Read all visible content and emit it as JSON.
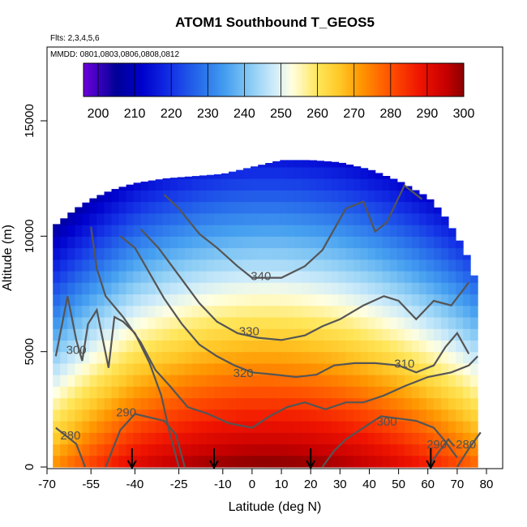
{
  "header": {
    "title": "ATOM1 Southbound T_GEOS5",
    "flights": "Flts: 2,3,4,5,6",
    "dates": "MMDD: 0801,0803,0806,0808,0812"
  },
  "chart_data": {
    "type": "heatmap",
    "title": "ATOM1 Southbound T_GEOS5",
    "xlabel": "Latitude (deg N)",
    "ylabel": "Altitude (m)",
    "xlim": [
      -70,
      80
    ],
    "ylim": [
      0,
      17500
    ],
    "x_ticks": [
      -70,
      -55,
      -40,
      -25,
      -10,
      0,
      10,
      20,
      30,
      40,
      50,
      60,
      70,
      80
    ],
    "x_tick_labels": [
      "-70",
      "-55",
      "-40",
      "-25",
      "-10",
      "0",
      "10",
      "20",
      "30",
      "40",
      "50",
      "60",
      "70",
      "80"
    ],
    "y_ticks": [
      0,
      5000,
      10000,
      15000
    ],
    "y_tick_labels": [
      "0",
      "5000",
      "10000",
      "15000"
    ],
    "colorbar": {
      "ticks": [
        200,
        210,
        220,
        230,
        240,
        250,
        260,
        270,
        280,
        290,
        300
      ],
      "tick_labels": [
        "200",
        "210",
        "220",
        "230",
        "240",
        "250",
        "260",
        "270",
        "280",
        "290",
        "300"
      ],
      "range": [
        196,
        300
      ],
      "colors": [
        "#6a0dad",
        "#00008b",
        "#0000cd",
        "#1e56e6",
        "#3d9be9",
        "#a6d3f5",
        "#ffffe0",
        "#ffe060",
        "#ff9900",
        "#ff2a00",
        "#c80000",
        "#8b0000"
      ]
    },
    "contours": [
      {
        "level": "280",
        "label_lat": -62,
        "label_alt": 1200
      },
      {
        "level": "290",
        "label_lat": -43,
        "label_alt": 2200
      },
      {
        "level": "300",
        "label_lat": -60,
        "label_alt": 4900
      },
      {
        "level": "320",
        "label_lat": -3,
        "label_alt": 3900
      },
      {
        "level": "330",
        "label_lat": -1,
        "label_alt": 5700
      },
      {
        "level": "340",
        "label_lat": 3,
        "label_alt": 8100
      },
      {
        "level": "310",
        "label_lat": 52,
        "label_alt": 4300
      },
      {
        "level": "300",
        "label_lat": 46,
        "label_alt": 1800
      },
      {
        "level": "290",
        "label_lat": 63,
        "label_alt": 800
      },
      {
        "level": "280",
        "label_lat": 73,
        "label_alt": 800
      }
    ],
    "markers": [
      {
        "label": "arrow",
        "lat": -41
      },
      {
        "label": "arrow",
        "lat": -13
      },
      {
        "label": "arrow",
        "lat": 20
      },
      {
        "label": "arrow",
        "lat": 61
      }
    ],
    "grid": false
  }
}
